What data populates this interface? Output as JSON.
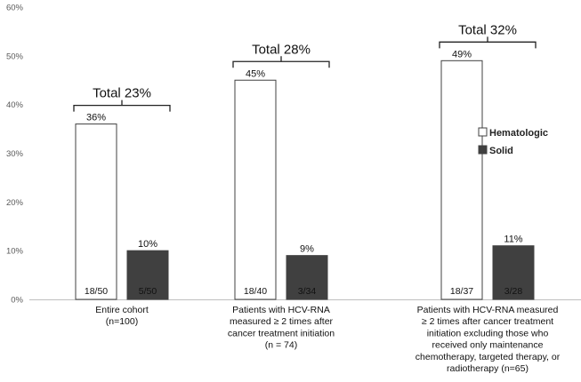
{
  "chart_data": {
    "type": "bar",
    "categories": [
      [
        "Entire cohort",
        "(n=100)"
      ],
      [
        "Patients with HCV-RNA",
        "measured ≥ 2 times after",
        "cancer treatment initiation",
        "(n = 74)"
      ],
      [
        "Patients with HCV-RNA measured",
        "≥ 2 times after cancer treatment",
        "initiation excluding those who",
        "received only maintenance",
        "chemotherapy, targeted therapy, or",
        "radiotherapy (n=65)"
      ]
    ],
    "series": [
      {
        "name": "Hematologic",
        "color": "#ffffff",
        "values": [
          36,
          45,
          49
        ],
        "value_labels": [
          "36%",
          "45%",
          "49%"
        ],
        "inside_labels": [
          "18/50",
          "18/40",
          "18/37"
        ]
      },
      {
        "name": "Solid",
        "color": "#404040",
        "values": [
          10,
          9,
          11
        ],
        "value_labels": [
          "10%",
          "9%",
          "11%"
        ],
        "inside_labels": [
          "5/50",
          "3/34",
          "3/28"
        ]
      }
    ],
    "totals": [
      "Total 23%",
      "Total 28%",
      "Total 32%"
    ],
    "yticks": [
      "0%",
      "10%",
      "20%",
      "30%",
      "40%",
      "50%",
      "60%"
    ],
    "ylim": [
      0,
      60
    ],
    "legend_position": "right",
    "grid": false
  }
}
